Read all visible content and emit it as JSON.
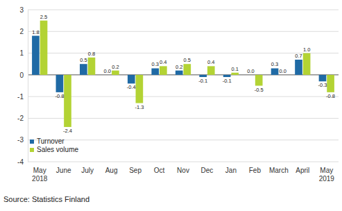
{
  "chart_data": {
    "type": "bar",
    "categories": [
      "May 2018",
      "June",
      "July",
      "Aug",
      "Sep",
      "Oct",
      "Nov",
      "Dec",
      "Jan",
      "Feb",
      "March",
      "April",
      "May 2019"
    ],
    "series": [
      {
        "name": "Turnover",
        "color": "#1f6aa5",
        "values": [
          1.8,
          -0.8,
          0.5,
          0.0,
          -0.4,
          0.3,
          0.2,
          -0.1,
          -0.1,
          0.0,
          0.3,
          0.7,
          -0.3
        ],
        "value_labels": [
          "1.8",
          "-0.8",
          "0.5",
          "0.0",
          "-0.4",
          "0.3",
          "0.2",
          "-0.1",
          "-0.1",
          "0.0",
          "0.3",
          "0.7",
          "-0.3"
        ]
      },
      {
        "name": "Sales volume",
        "color": "#b3d334",
        "values": [
          2.5,
          -2.4,
          0.8,
          0.2,
          -1.3,
          0.4,
          0.5,
          0.4,
          0.1,
          -0.5,
          0.0,
          1.0,
          -0.8
        ],
        "value_labels": [
          "2.5",
          "-2.4",
          "0.8",
          "0.2",
          "-1.3",
          "0.4",
          "0.5",
          "0.4",
          "0.1",
          "-0.5",
          "0.0",
          "1.0",
          "-0.8"
        ]
      }
    ],
    "ylim": [
      -4,
      3
    ],
    "yticks": [
      -4,
      -3,
      -2,
      -1,
      0,
      1,
      2,
      3
    ],
    "grid": true,
    "data_labels": true,
    "legend": "lower left",
    "source": "Source: Statistics Finland"
  }
}
